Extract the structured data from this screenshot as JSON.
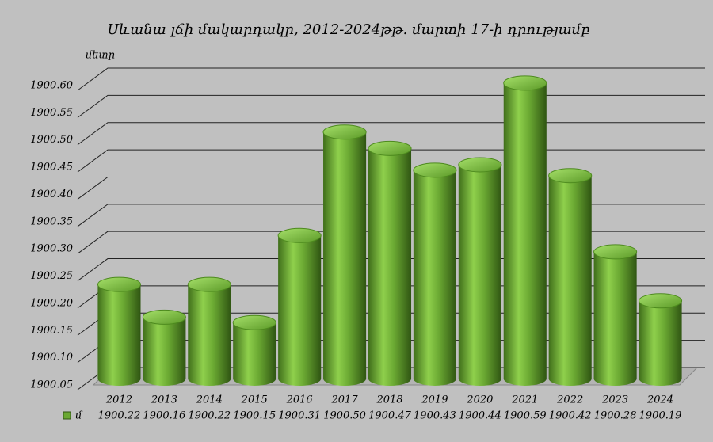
{
  "chart_data": {
    "type": "bar",
    "title": "Սևանա լճի մակարդակր, 2012-2024թթ. մարտի 17-ի դրությամբ",
    "y_label": "մետր",
    "categories": [
      "2012",
      "2013",
      "2014",
      "2015",
      "2016",
      "2017",
      "2018",
      "2019",
      "2020",
      "2021",
      "2022",
      "2023",
      "2024"
    ],
    "series": [
      {
        "name": "մ",
        "color": "#6aa832",
        "values": [
          1900.22,
          1900.16,
          1900.22,
          1900.15,
          1900.31,
          1900.5,
          1900.47,
          1900.43,
          1900.44,
          1900.59,
          1900.42,
          1900.28,
          1900.19
        ],
        "value_labels": [
          "1900.22",
          "1900.16",
          "1900.22",
          "1900.15",
          "1900.31",
          "1900.50",
          "1900.47",
          "1900.43",
          "1900.44",
          "1900.59",
          "1900.42",
          "1900.28",
          "1900.19"
        ]
      }
    ],
    "ylim": [
      1900.05,
      1900.6
    ],
    "yticks": [
      1900.05,
      {
        "value": 1900.1,
        "label": "1900.10"
      },
      1900.15,
      {
        "value": 1900.2,
        "label": "1900.20"
      },
      1900.25,
      {
        "value": 1900.3,
        "label": "1900.30"
      },
      1900.35,
      {
        "value": 1900.4,
        "label": "1900.40"
      },
      1900.45,
      {
        "value": 1900.5,
        "label": "1900.50"
      },
      1900.55,
      {
        "value": 1900.6,
        "label": "1900.60"
      }
    ],
    "grid": true
  }
}
